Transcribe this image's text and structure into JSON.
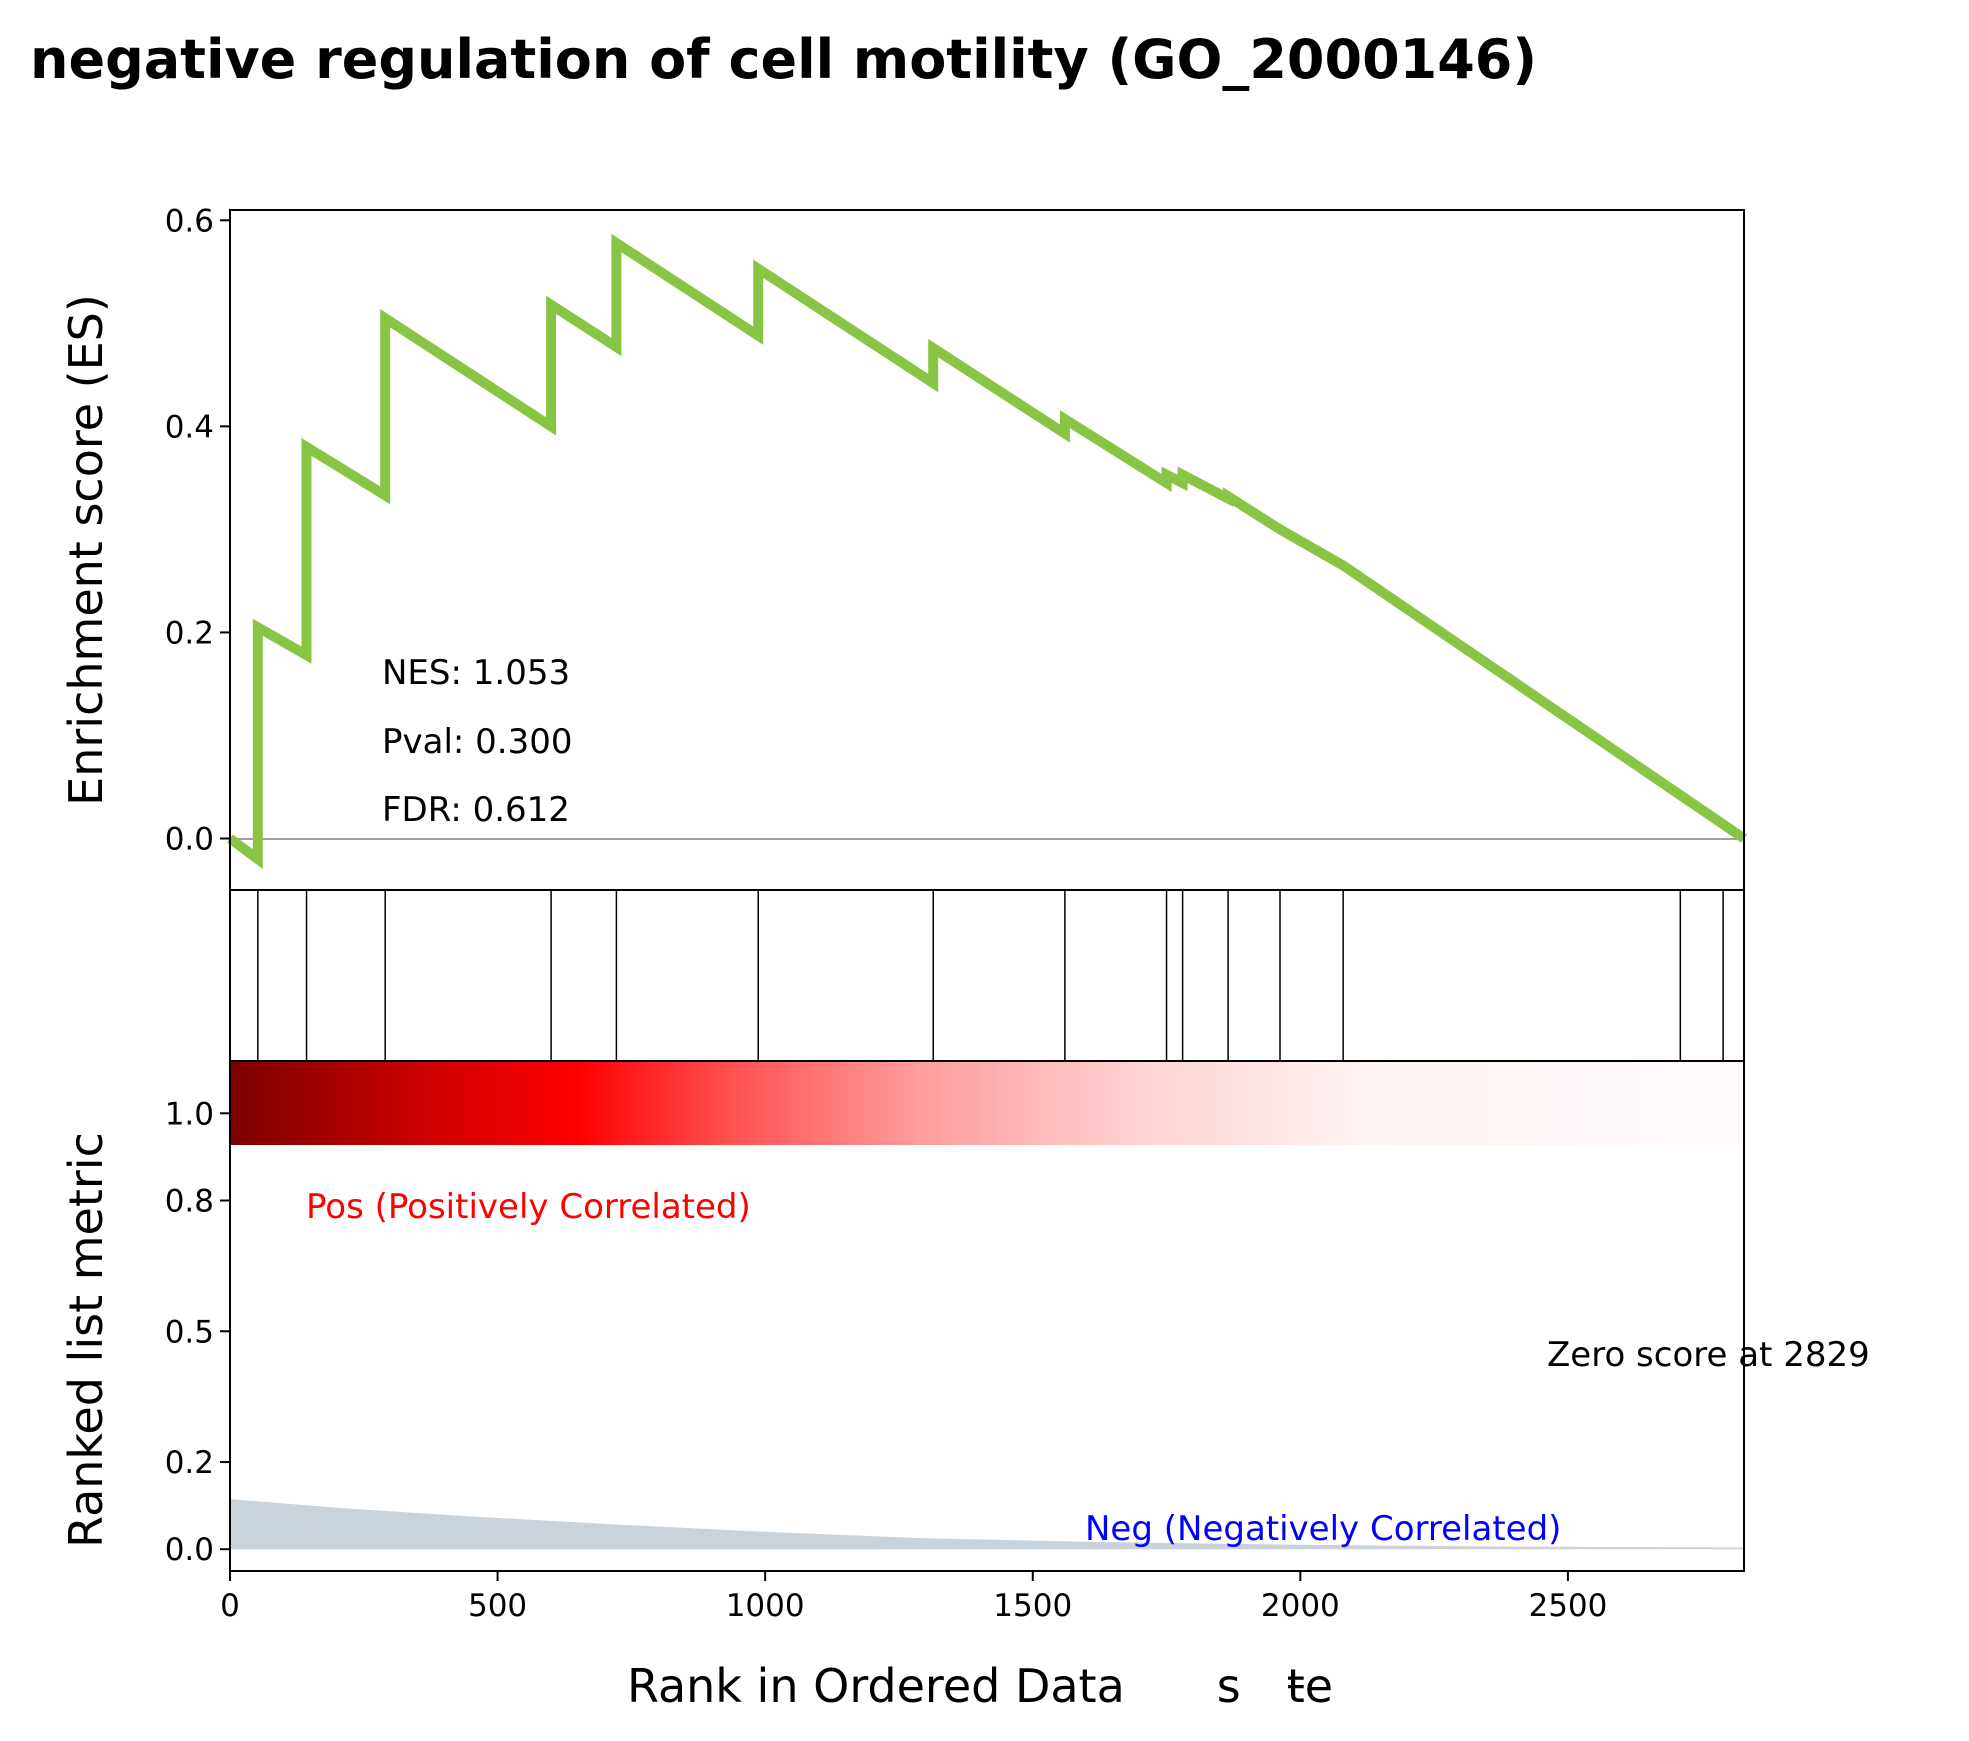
{
  "chart_data": {
    "type": "line",
    "title": "negative regulation of cell motility (GO_2000146)",
    "es_panel": {
      "ylabel": "Enrichment score (ES)",
      "ylim": [
        -0.05,
        0.61
      ],
      "yticks": [
        "0.0",
        "0.2",
        "0.4",
        "0.6"
      ],
      "line_color": "#88c544",
      "series": [
        {
          "x": [
            0,
            52,
            52,
            143,
            143,
            290,
            290,
            600,
            600,
            722,
            722,
            987,
            987,
            1314,
            1314,
            1560,
            1560,
            1750,
            1750,
            1780,
            1780,
            1865,
            1865,
            1962,
            1962,
            2080,
            2080,
            2829
          ],
          "y": [
            0.0,
            -0.02,
            0.205,
            0.178,
            0.38,
            0.333,
            0.505,
            0.4,
            0.518,
            0.477,
            0.578,
            0.488,
            0.553,
            0.442,
            0.476,
            0.393,
            0.407,
            0.345,
            0.353,
            0.345,
            0.353,
            0.33,
            0.332,
            0.3,
            0.3,
            0.265,
            0.265,
            0.0
          ]
        }
      ],
      "stats": {
        "nes": "NES: 1.053",
        "pval": "Pval: 0.300",
        "fdr": "FDR: 0.612"
      }
    },
    "hits": [
      52,
      143,
      290,
      600,
      722,
      987,
      1314,
      1560,
      1750,
      1780,
      1865,
      1962,
      2080,
      2710,
      2790,
      2829
    ],
    "rank_panel": {
      "ylabel": "Ranked list metric",
      "ylim": [
        -0.05,
        1.12
      ],
      "yticks": [
        "0.0",
        "0.2",
        "0.5",
        "0.8",
        "1.0"
      ],
      "fill_color": "#c8d3dc",
      "metric": {
        "x": [
          0,
          200,
          450,
          700,
          1000,
          1300,
          1600,
          2000,
          2400,
          2829
        ],
        "y": [
          0.115,
          0.095,
          0.075,
          0.058,
          0.04,
          0.025,
          0.017,
          0.01,
          0.006,
          0.004
        ]
      },
      "pos_label": "Pos (Positively Correlated)",
      "neg_label": "Neg (Negatively Correlated)",
      "pos_color": "#ff0000",
      "neg_color": "#0000ff",
      "zero_score_label": "Zero score at 2829"
    },
    "x_axis": {
      "xlabel": "Rank in Ordered Data  s ŧe",
      "xlim": [
        0,
        2829
      ],
      "xticks": [
        0,
        500,
        1000,
        1500,
        2000,
        2500
      ]
    }
  }
}
